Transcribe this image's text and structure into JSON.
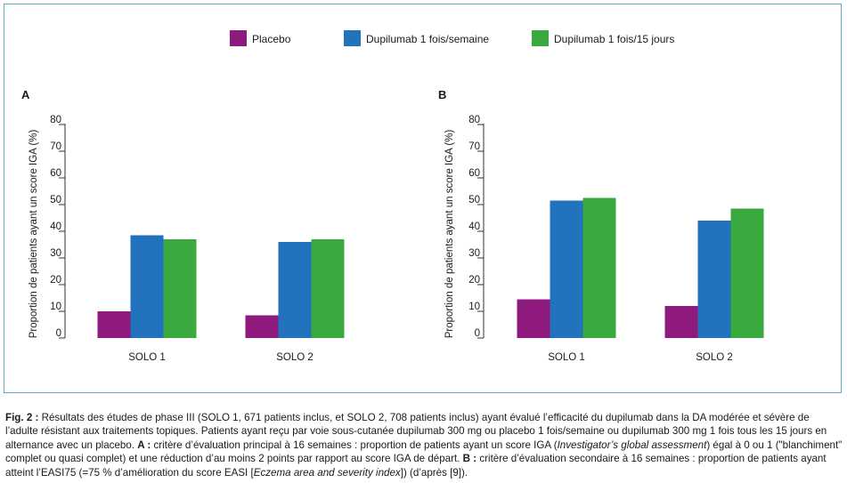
{
  "colors": {
    "placebo": "#8e1a7e",
    "weekly": "#2372be",
    "biweekly": "#3aaa3f",
    "frame": "#5aa7c8",
    "axis": "#333333"
  },
  "legend": [
    {
      "label": "Placebo",
      "color": "#8e1a7e"
    },
    {
      "label": "Dupilumab 1 fois/semaine",
      "color": "#2372be"
    },
    {
      "label": "Dupilumab 1 fois/15 jours",
      "color": "#3aaa3f"
    }
  ],
  "chart_data": [
    {
      "type": "bar",
      "panel_label": "A",
      "ylabel": "Proportion de patients ayant un score IGA (%)",
      "categories": [
        "SOLO 1",
        "SOLO 2"
      ],
      "ylim": [
        0,
        80
      ],
      "yticks": [
        0,
        10,
        20,
        30,
        40,
        50,
        60,
        70,
        80
      ],
      "series": [
        {
          "name": "Placebo",
          "values": [
            10,
            8.5
          ]
        },
        {
          "name": "Dupilumab 1 fois/semaine",
          "values": [
            38.5,
            36
          ]
        },
        {
          "name": "Dupilumab 1 fois/15 jours",
          "values": [
            37,
            37
          ]
        }
      ]
    },
    {
      "type": "bar",
      "panel_label": "B",
      "ylabel": "Proportion de patients ayant un score IGA (%)",
      "categories": [
        "SOLO 1",
        "SOLO 2"
      ],
      "ylim": [
        0,
        80
      ],
      "yticks": [
        0,
        10,
        20,
        30,
        40,
        50,
        60,
        70,
        80
      ],
      "series": [
        {
          "name": "Placebo",
          "values": [
            14.5,
            12
          ]
        },
        {
          "name": "Dupilumab 1 fois/semaine",
          "values": [
            51.5,
            44
          ]
        },
        {
          "name": "Dupilumab 1 fois/15 jours",
          "values": [
            52.5,
            48.5
          ]
        }
      ]
    }
  ],
  "caption": {
    "label": "Fig. 2 :",
    "part1": " Résultats des études de phase III (SOLO 1, 671 patients inclus, et SOLO 2, 708 patients inclus) ayant évalué l’efficacité du dupilumab dans la DA modérée et sévère de l’adulte résistant aux traitements topiques. Patients ayant reçu par voie sous-cutanée dupilumab 300 mg ou placebo 1 fois/semaine ou dupilumab 300 mg 1 fois tous les 15 jours en alternance avec un placebo. ",
    "a_label": "A :",
    "part2": " critère d’évaluation principal à 16 semaines : proportion de patients ayant un score IGA (",
    "iga_italic": "Investigator’s global assessment",
    "part3": ") égal à 0 ou 1 (\"blanchiment\" complet ou quasi complet) et une réduction d’au moins 2 points par rapport au score IGA de départ. ",
    "b_label": "B :",
    "part4": " critère d’évaluation secondaire à 16 semaines : proportion de patients ayant atteint l’EASI75 (=75 % d’amélioration du score EASI [",
    "easi_italic": "Eczema area and severity index",
    "part5": "]) (d’après [9])."
  }
}
